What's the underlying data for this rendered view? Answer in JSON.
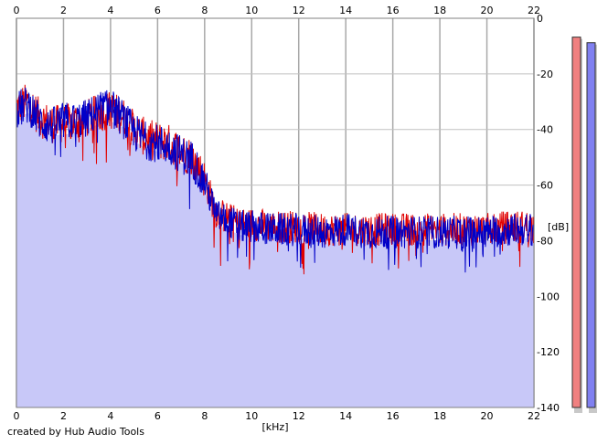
{
  "credit": "created by Hub Audio Tools",
  "chart_data": {
    "type": "line",
    "title": "",
    "xlabel": "[kHz]",
    "ylabel": "[dB]",
    "xlim": [
      0,
      22
    ],
    "ylim": [
      -140,
      0
    ],
    "x_ticks": [
      0,
      2,
      4,
      6,
      8,
      10,
      12,
      14,
      16,
      18,
      20,
      22
    ],
    "y_ticks": [
      0,
      -20,
      -40,
      -60,
      -80,
      -100,
      -120,
      -140
    ],
    "grid": true,
    "fill_color": "#c8c8f8",
    "series": [
      {
        "color": "#e00000",
        "x": [
          0,
          0.5,
          1,
          1.5,
          2,
          2.5,
          3,
          3.5,
          4,
          4.5,
          5,
          5.5,
          6,
          6.5,
          7,
          7.5,
          8,
          8.5,
          9,
          9.5,
          10,
          11,
          12,
          13,
          14,
          15,
          16,
          17,
          18,
          19,
          20,
          21,
          22
        ],
        "values": [
          -32,
          -30,
          -36,
          -38,
          -38,
          -37,
          -36,
          -34,
          -33,
          -35,
          -40,
          -43,
          -44,
          -45,
          -48,
          -50,
          -58,
          -70,
          -72,
          -74,
          -74,
          -75,
          -75,
          -76,
          -76,
          -76,
          -76,
          -76,
          -76,
          -76,
          -76,
          -75,
          -75
        ]
      },
      {
        "color": "#0000c8",
        "x": [
          0,
          0.5,
          1,
          1.5,
          2,
          2.5,
          3,
          3.5,
          4,
          4.5,
          5,
          5.5,
          6,
          6.5,
          7,
          7.5,
          8,
          8.5,
          9,
          9.5,
          10,
          11,
          12,
          13,
          14,
          15,
          16,
          17,
          18,
          19,
          20,
          21,
          22
        ],
        "values": [
          -33,
          -31,
          -37,
          -39,
          -37,
          -37,
          -36,
          -33,
          -32,
          -36,
          -41,
          -44,
          -45,
          -46,
          -49,
          -51,
          -59,
          -71,
          -73,
          -75,
          -75,
          -76,
          -76,
          -77,
          -76,
          -77,
          -77,
          -77,
          -77,
          -77,
          -77,
          -76,
          -76
        ]
      }
    ],
    "level_meters": [
      {
        "color": "#f08080",
        "level_db": -3.5
      },
      {
        "color": "#8080f0",
        "level_db": -5.5
      }
    ]
  }
}
